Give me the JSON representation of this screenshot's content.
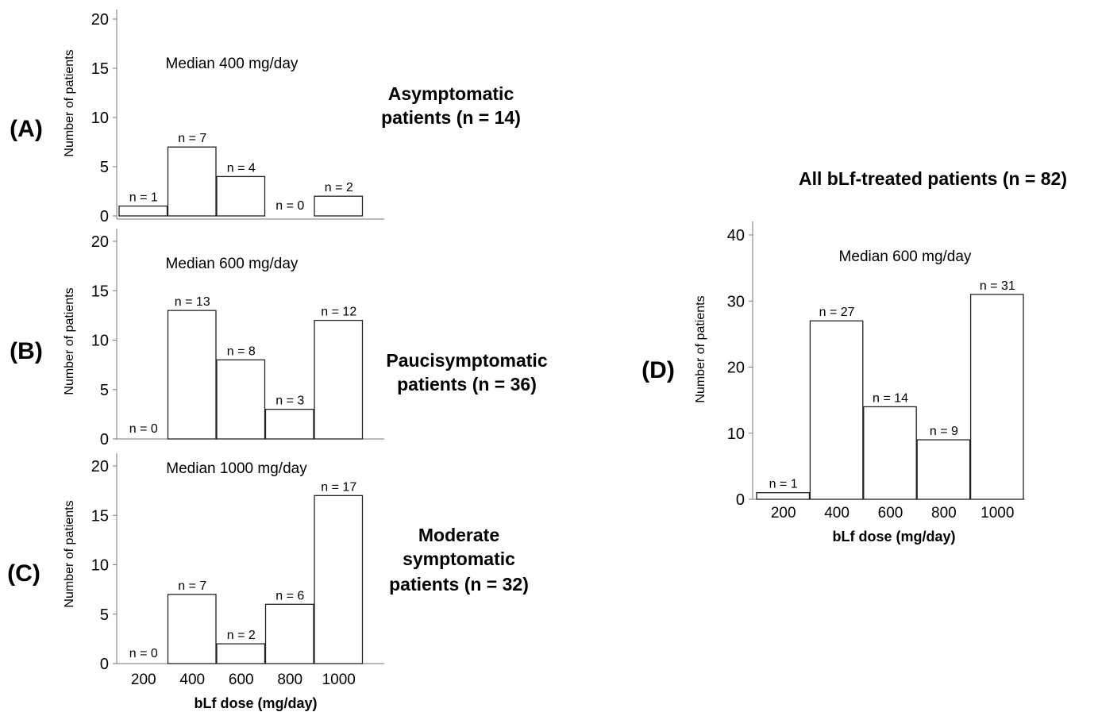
{
  "chart_data": [
    {
      "type": "bar",
      "panel": "(A)",
      "title": "Asymptomatic patients (n = 14)",
      "title_lines": [
        "Asymptomatic",
        "patients (n = 14)"
      ],
      "annotation": "Median 400 mg/day",
      "ylabel": "Number of patients",
      "xlabel": "",
      "categories": [
        "200",
        "400",
        "600",
        "800",
        "1000"
      ],
      "values": [
        1,
        7,
        4,
        0,
        2
      ],
      "data_labels": [
        "n = 1",
        "n = 7",
        "n = 4",
        "n = 0",
        "n = 2"
      ],
      "yticks": [
        0,
        5,
        10,
        15,
        20
      ],
      "ylim": [
        0,
        20
      ],
      "show_xticks": false
    },
    {
      "type": "bar",
      "panel": "(B)",
      "title": "Paucisymptomatic patients (n = 36)",
      "title_lines": [
        "Paucisymptomatic",
        "patients (n = 36)"
      ],
      "annotation": "Median 600 mg/day",
      "ylabel": "Number of patients",
      "xlabel": "",
      "categories": [
        "200",
        "400",
        "600",
        "800",
        "1000"
      ],
      "values": [
        0,
        13,
        8,
        3,
        12
      ],
      "data_labels": [
        "n = 0",
        "n = 13",
        "n = 8",
        "n = 3",
        "n = 12"
      ],
      "yticks": [
        0,
        5,
        10,
        15,
        20
      ],
      "ylim": [
        0,
        20
      ],
      "show_xticks": false
    },
    {
      "type": "bar",
      "panel": "(C)",
      "title": "Moderate symptomatic patients (n = 32)",
      "title_lines": [
        "Moderate",
        "symptomatic",
        "patients (n = 32)"
      ],
      "annotation": "Median 1000 mg/day",
      "ylabel": "Number of patients",
      "xlabel": "bLf dose (mg/day)",
      "categories": [
        "200",
        "400",
        "600",
        "800",
        "1000"
      ],
      "values": [
        0,
        7,
        2,
        6,
        17
      ],
      "data_labels": [
        "n = 0",
        "n = 7",
        "n = 2",
        "n = 6",
        "n = 17"
      ],
      "yticks": [
        0,
        5,
        10,
        15,
        20
      ],
      "ylim": [
        0,
        20
      ],
      "show_xticks": true
    },
    {
      "type": "bar",
      "panel": "(D)",
      "title": "All bLf-treated patients (n = 82)",
      "title_lines": [
        "All bLf-treated patients (n = 82)"
      ],
      "annotation": "Median 600 mg/day",
      "ylabel": "Number of patients",
      "xlabel": "bLf dose (mg/day)",
      "categories": [
        "200",
        "400",
        "600",
        "800",
        "1000"
      ],
      "values": [
        1,
        27,
        14,
        9,
        31
      ],
      "data_labels": [
        "n = 1",
        "n = 27",
        "n = 14",
        "n = 9",
        "n = 31"
      ],
      "yticks": [
        0,
        10,
        20,
        30,
        40
      ],
      "ylim": [
        0,
        40
      ],
      "show_xticks": true
    }
  ]
}
